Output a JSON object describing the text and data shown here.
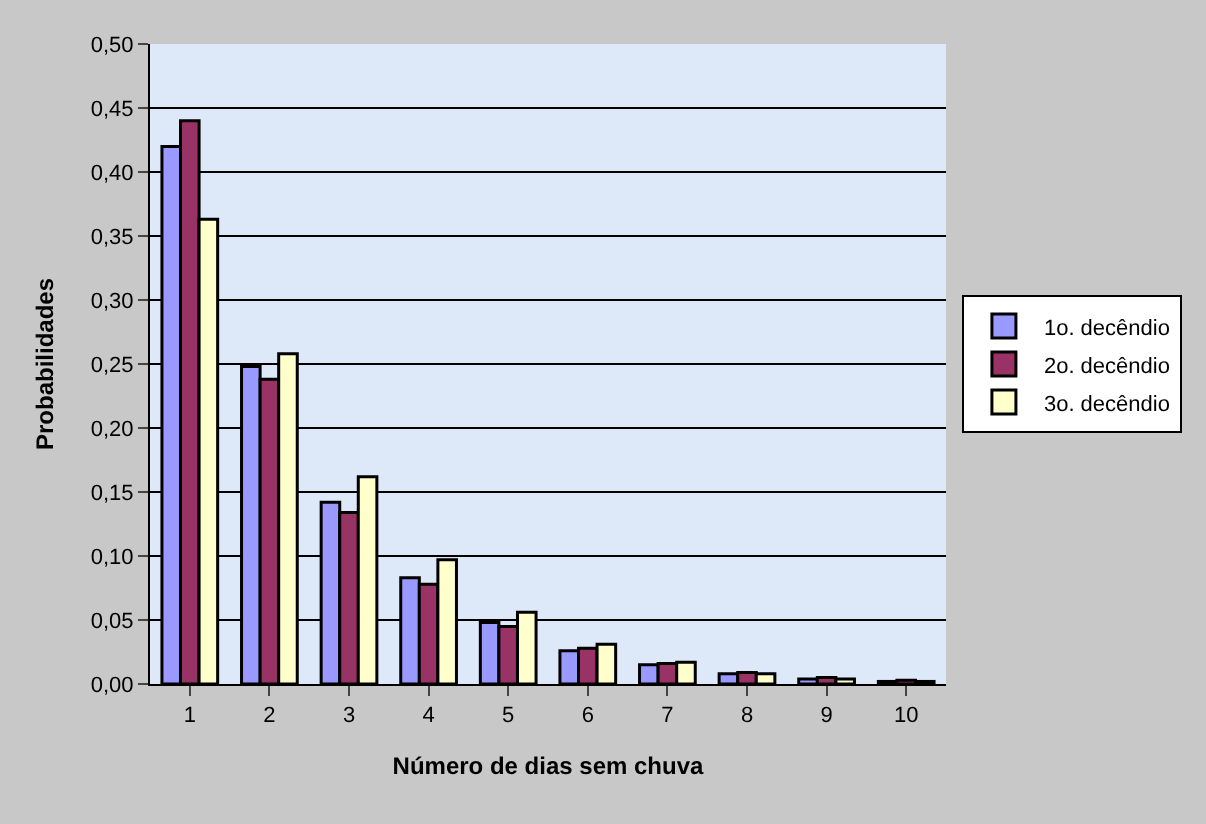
{
  "chart_data": {
    "type": "bar",
    "xlabel": "Número de dias sem chuva",
    "ylabel": "Probabilidades",
    "categories": [
      "1",
      "2",
      "3",
      "4",
      "5",
      "6",
      "7",
      "8",
      "9",
      "10"
    ],
    "series": [
      {
        "name": "1o. decêndio",
        "color": "#9999ff",
        "values": [
          0.42,
          0.248,
          0.142,
          0.083,
          0.048,
          0.026,
          0.015,
          0.008,
          0.004,
          0.002
        ]
      },
      {
        "name": "2o. decêndio",
        "color": "#993366",
        "values": [
          0.44,
          0.238,
          0.134,
          0.078,
          0.045,
          0.028,
          0.016,
          0.009,
          0.005,
          0.003
        ]
      },
      {
        "name": "3o. decêndio",
        "color": "#ffffcc",
        "values": [
          0.363,
          0.258,
          0.162,
          0.097,
          0.056,
          0.031,
          0.017,
          0.008,
          0.004,
          0.002
        ]
      }
    ],
    "ylim": [
      0,
      0.5
    ],
    "yticks": [
      {
        "value": 0,
        "label": "0,00"
      },
      {
        "value": 0.05,
        "label": "0,05"
      },
      {
        "value": 0.1,
        "label": "0,10"
      },
      {
        "value": 0.15,
        "label": "0,15"
      },
      {
        "value": 0.2,
        "label": "0,20"
      },
      {
        "value": 0.25,
        "label": "0,25"
      },
      {
        "value": 0.3,
        "label": "0,30"
      },
      {
        "value": 0.35,
        "label": "0,35"
      },
      {
        "value": 0.4,
        "label": "0,40"
      },
      {
        "value": 0.45,
        "label": "0,45"
      },
      {
        "value": 0.5,
        "label": "0,50"
      }
    ],
    "grid": "y",
    "legend": "right"
  }
}
